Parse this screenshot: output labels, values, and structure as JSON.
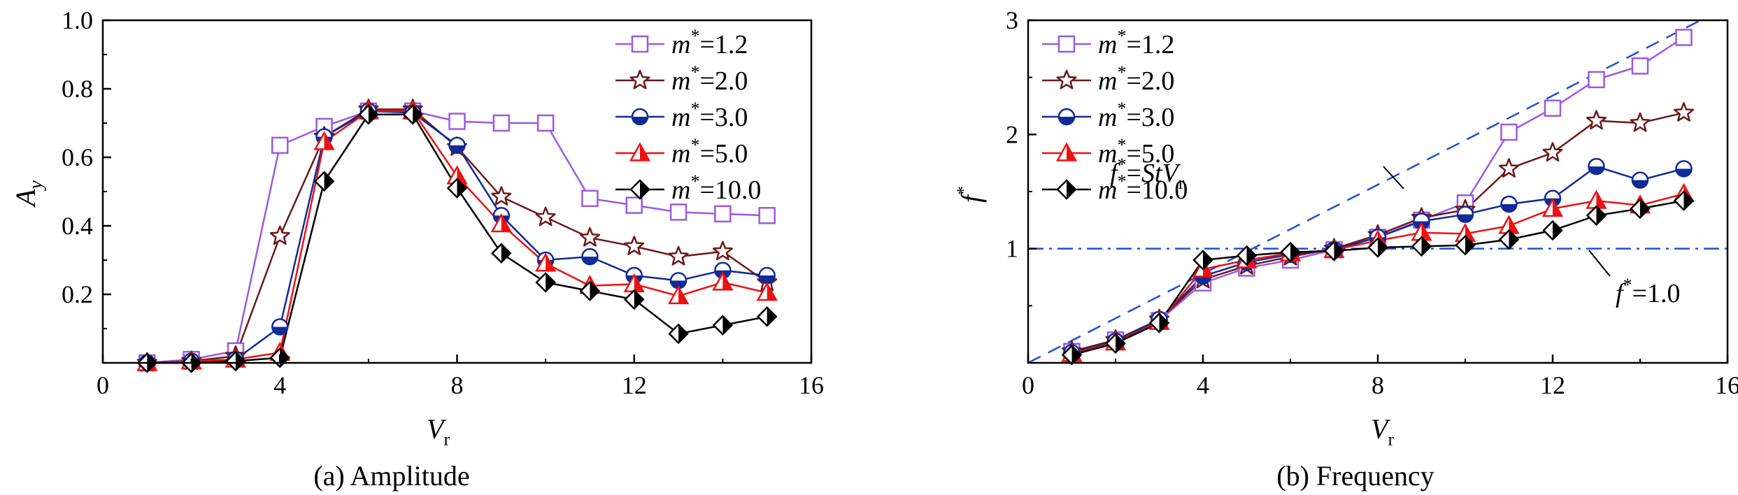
{
  "chart_data": [
    {
      "type": "line",
      "caption": "(a) Amplitude",
      "xlabel": "V",
      "xlabel_sub": "r",
      "ylabel": "A",
      "ylabel_sub": "y",
      "xlim": [
        0,
        16
      ],
      "ylim": [
        0,
        1.0
      ],
      "xticks": [
        "0",
        "4",
        "8",
        "12",
        "16"
      ],
      "yticks": [
        "0.2",
        "0.4",
        "0.6",
        "0.8",
        "1.0"
      ],
      "legend_position": "top-right",
      "x": [
        1,
        2,
        3,
        4,
        5,
        6,
        7,
        8,
        9,
        10,
        11,
        12,
        13,
        14,
        15
      ],
      "series": [
        {
          "name": "m*=1.2",
          "label_var": "m",
          "label_sup": "*",
          "label_val": "=1.2",
          "color": "#9b59e6",
          "marker": "square-open",
          "values": [
            0.0,
            0.01,
            0.035,
            0.635,
            0.69,
            0.735,
            0.735,
            0.705,
            0.7,
            0.7,
            0.48,
            0.46,
            0.44,
            0.435,
            0.43
          ]
        },
        {
          "name": "m*=2.0",
          "label_var": "m",
          "label_sup": "*",
          "label_val": "=2.0",
          "color": "#6b1a1a",
          "marker": "star",
          "values": [
            0.0,
            0.005,
            0.02,
            0.37,
            0.66,
            0.74,
            0.74,
            0.63,
            0.485,
            0.425,
            0.365,
            0.34,
            0.31,
            0.325,
            0.235
          ]
        },
        {
          "name": "m*=3.0",
          "label_var": "m",
          "label_sup": "*",
          "label_val": "=3.0",
          "color": "#102a9a",
          "marker": "circle-half",
          "values": [
            0.0,
            0.005,
            0.01,
            0.105,
            0.66,
            0.735,
            0.73,
            0.635,
            0.43,
            0.3,
            0.31,
            0.255,
            0.24,
            0.27,
            0.255
          ]
        },
        {
          "name": "m*=5.0",
          "label_var": "m",
          "label_sup": "*",
          "label_val": "=5.0",
          "color": "#ee1111",
          "marker": "triangle-half",
          "values": [
            0.0,
            0.005,
            0.01,
            0.03,
            0.645,
            0.735,
            0.735,
            0.545,
            0.405,
            0.29,
            0.225,
            0.23,
            0.195,
            0.235,
            0.205
          ]
        },
        {
          "name": "m*=10.0",
          "label_var": "m",
          "label_sup": "*",
          "label_val": "=10.0",
          "color": "#000000",
          "marker": "diamond-half",
          "values": [
            0.0,
            0.0,
            0.005,
            0.015,
            0.53,
            0.725,
            0.725,
            0.51,
            0.32,
            0.235,
            0.21,
            0.185,
            0.085,
            0.11,
            0.135
          ]
        }
      ]
    },
    {
      "type": "line",
      "caption": "(b) Frequency",
      "xlabel": "V",
      "xlabel_sub": "r",
      "ylabel": "f",
      "ylabel_sup": "*",
      "xlim": [
        0,
        16
      ],
      "ylim": [
        0,
        3
      ],
      "xticks": [
        "0",
        "4",
        "8",
        "12",
        "16"
      ],
      "yticks": [
        "1",
        "2",
        "3"
      ],
      "legend_position": "top-left",
      "x": [
        1,
        2,
        3,
        4,
        5,
        6,
        7,
        8,
        9,
        10,
        11,
        12,
        13,
        14,
        15
      ],
      "series": [
        {
          "name": "m*=1.2",
          "label_var": "m",
          "label_sup": "*",
          "label_val": "=1.2",
          "color": "#9b59e6",
          "marker": "square-open",
          "values": [
            0.1,
            0.2,
            0.37,
            0.7,
            0.83,
            0.9,
            0.99,
            1.1,
            1.25,
            1.4,
            2.02,
            2.23,
            2.48,
            2.6,
            2.85
          ]
        },
        {
          "name": "m*=2.0",
          "label_var": "m",
          "label_sup": "*",
          "label_val": "=2.0",
          "color": "#6b1a1a",
          "marker": "star",
          "values": [
            0.1,
            0.2,
            0.38,
            0.73,
            0.85,
            0.93,
            1.0,
            1.12,
            1.27,
            1.34,
            1.7,
            1.84,
            2.12,
            2.1,
            2.19
          ]
        },
        {
          "name": "m*=3.0",
          "label_var": "m",
          "label_sup": "*",
          "label_val": "=3.0",
          "color": "#102a9a",
          "marker": "circle-half",
          "values": [
            0.09,
            0.19,
            0.38,
            0.76,
            0.88,
            0.95,
            0.99,
            1.1,
            1.24,
            1.3,
            1.39,
            1.44,
            1.72,
            1.6,
            1.7
          ]
        },
        {
          "name": "m*=5.0",
          "label_var": "m",
          "label_sup": "*",
          "label_val": "=5.0",
          "color": "#ee1111",
          "marker": "triangle-half",
          "values": [
            0.08,
            0.18,
            0.36,
            0.82,
            0.9,
            0.96,
            0.99,
            1.07,
            1.14,
            1.13,
            1.2,
            1.35,
            1.42,
            1.38,
            1.48
          ]
        },
        {
          "name": "m*=10.0",
          "label_var": "m",
          "label_sup": "*",
          "label_val": "=10.0",
          "color": "#000000",
          "marker": "diamond-half",
          "values": [
            0.07,
            0.17,
            0.35,
            0.9,
            0.94,
            0.97,
            0.98,
            1.01,
            1.02,
            1.03,
            1.08,
            1.16,
            1.29,
            1.35,
            1.42
          ]
        }
      ],
      "reference_lines": [
        {
          "name": "f*=StV_r",
          "style": "dashed",
          "color": "#1f4fd6",
          "slope": 0.195,
          "intercept": 0.0
        },
        {
          "name": "f*=1.0",
          "style": "dash-dot",
          "color": "#1f4fd6",
          "y": 1.0
        }
      ],
      "annotations": [
        {
          "id": "strouhal",
          "parts": [
            "f",
            "*",
            "=",
            "StV",
            "r"
          ]
        },
        {
          "id": "unity",
          "parts": [
            "f",
            "*",
            "=1.0"
          ]
        }
      ]
    }
  ]
}
